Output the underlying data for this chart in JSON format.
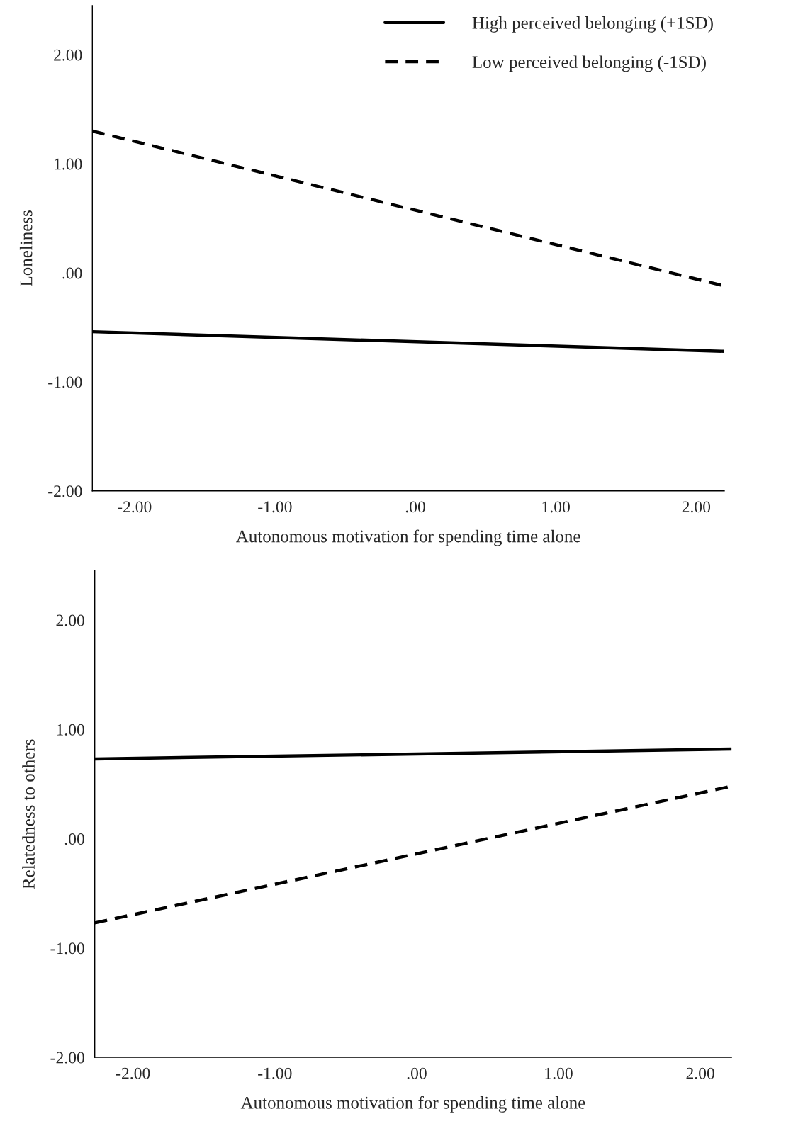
{
  "chart_data": [
    {
      "type": "line",
      "xlabel": "Autonomous motivation for spending time alone",
      "ylabel": "Loneliness",
      "xlim": [
        -2.3,
        2.2
      ],
      "ylim": [
        -2.0,
        2.45
      ],
      "xticks": [
        {
          "value": -2,
          "label": "-2.00"
        },
        {
          "value": -1,
          "label": "-1.00"
        },
        {
          "value": 0,
          "label": ".00"
        },
        {
          "value": 1,
          "label": "1.00"
        },
        {
          "value": 2,
          "label": "2.00"
        }
      ],
      "yticks": [
        {
          "value": -2,
          "label": "-2.00"
        },
        {
          "value": -1,
          "label": "-1.00"
        },
        {
          "value": 0,
          "label": ".00"
        },
        {
          "value": 1,
          "label": "1.00"
        },
        {
          "value": 2,
          "label": "2.00"
        }
      ],
      "grid": false,
      "legend": "top right",
      "marker": "none",
      "series": [
        {
          "name": "High perceived belonging (+1SD)",
          "color": "#000000",
          "line_style": "solid",
          "x": [
            -2.3,
            2.2
          ],
          "values": [
            -0.54,
            -0.72
          ]
        },
        {
          "name": "Low perceived belonging (-1SD)",
          "color": "#000000",
          "line_style": "dashed",
          "x": [
            -2.3,
            2.2
          ],
          "values": [
            1.3,
            -0.12
          ]
        }
      ]
    },
    {
      "type": "line",
      "xlabel": "Autonomous motivation for spending time alone",
      "ylabel": "Relatedness to others",
      "xlim": [
        -2.27,
        2.22
      ],
      "ylim": [
        -2.0,
        2.45
      ],
      "xticks": [
        {
          "value": -2,
          "label": "-2.00"
        },
        {
          "value": -1,
          "label": "-1.00"
        },
        {
          "value": 0,
          "label": ".00"
        },
        {
          "value": 1,
          "label": "1.00"
        },
        {
          "value": 2,
          "label": "2.00"
        }
      ],
      "yticks": [
        {
          "value": -2,
          "label": "-2.00"
        },
        {
          "value": -1,
          "label": "-1.00"
        },
        {
          "value": 0,
          "label": ".00"
        },
        {
          "value": 1,
          "label": "1.00"
        },
        {
          "value": 2,
          "label": "2.00"
        }
      ],
      "grid": false,
      "marker": "none",
      "series": [
        {
          "color": "#000000",
          "line_style": "solid",
          "x": [
            -2.27,
            2.22
          ],
          "values": [
            0.73,
            0.82
          ]
        },
        {
          "color": "#000000",
          "line_style": "dashed",
          "x": [
            -2.27,
            2.22
          ],
          "values": [
            -0.77,
            0.48
          ]
        }
      ]
    }
  ]
}
